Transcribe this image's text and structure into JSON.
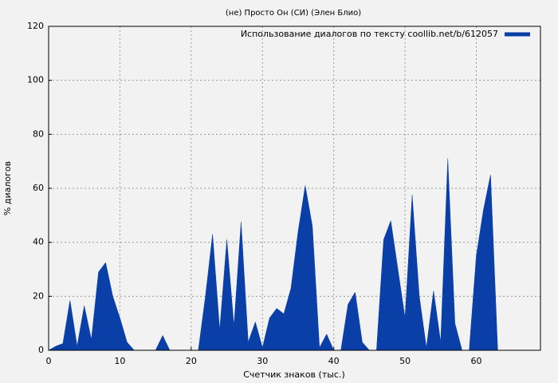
{
  "chart_data": {
    "type": "area",
    "title": "(не) Просто Он (СИ) (Элен Блио)",
    "x_label": "Счетчик знаков (тыс.)",
    "y_label": "% диалогов",
    "x": [
      0,
      1,
      2,
      3,
      4,
      5,
      6,
      7,
      8,
      9,
      10,
      11,
      12,
      13,
      14,
      15,
      16,
      17,
      18,
      19,
      20,
      21,
      22,
      23,
      24,
      25,
      26,
      27,
      28,
      29,
      30,
      31,
      32,
      33,
      34,
      35,
      36,
      37,
      38,
      39,
      40,
      41,
      42,
      43,
      44,
      45,
      46,
      47,
      48,
      49,
      50,
      51,
      52,
      53,
      54,
      55,
      56,
      57,
      58,
      59,
      60,
      61,
      62,
      63
    ],
    "series": [
      {
        "name": "Использование диалогов по тексту coollib.net/b/612057",
        "color": "#0a3fa8",
        "values": [
          0,
          1.5,
          2.5,
          18.5,
          1.5,
          16.5,
          4,
          29,
          32.5,
          20,
          12,
          3,
          0,
          0,
          0,
          0,
          5.5,
          0,
          0,
          0,
          0,
          0,
          20,
          43,
          7.5,
          41,
          9,
          47.5,
          3,
          10.5,
          1,
          12,
          15.5,
          13.5,
          23,
          44,
          61,
          46,
          1,
          6,
          0,
          0,
          17,
          21.5,
          3,
          0,
          0,
          41,
          48,
          30,
          12,
          57.5,
          20,
          1,
          22,
          3,
          71,
          10,
          0,
          0,
          35,
          52,
          65,
          0
        ]
      }
    ],
    "xlim": [
      0,
      69
    ],
    "ylim": [
      0,
      120
    ],
    "xticks": [
      0,
      10,
      20,
      30,
      40,
      50,
      60
    ],
    "yticks": [
      0,
      20,
      40,
      60,
      80,
      100,
      120
    ],
    "grid": true,
    "legend": "top-right"
  }
}
